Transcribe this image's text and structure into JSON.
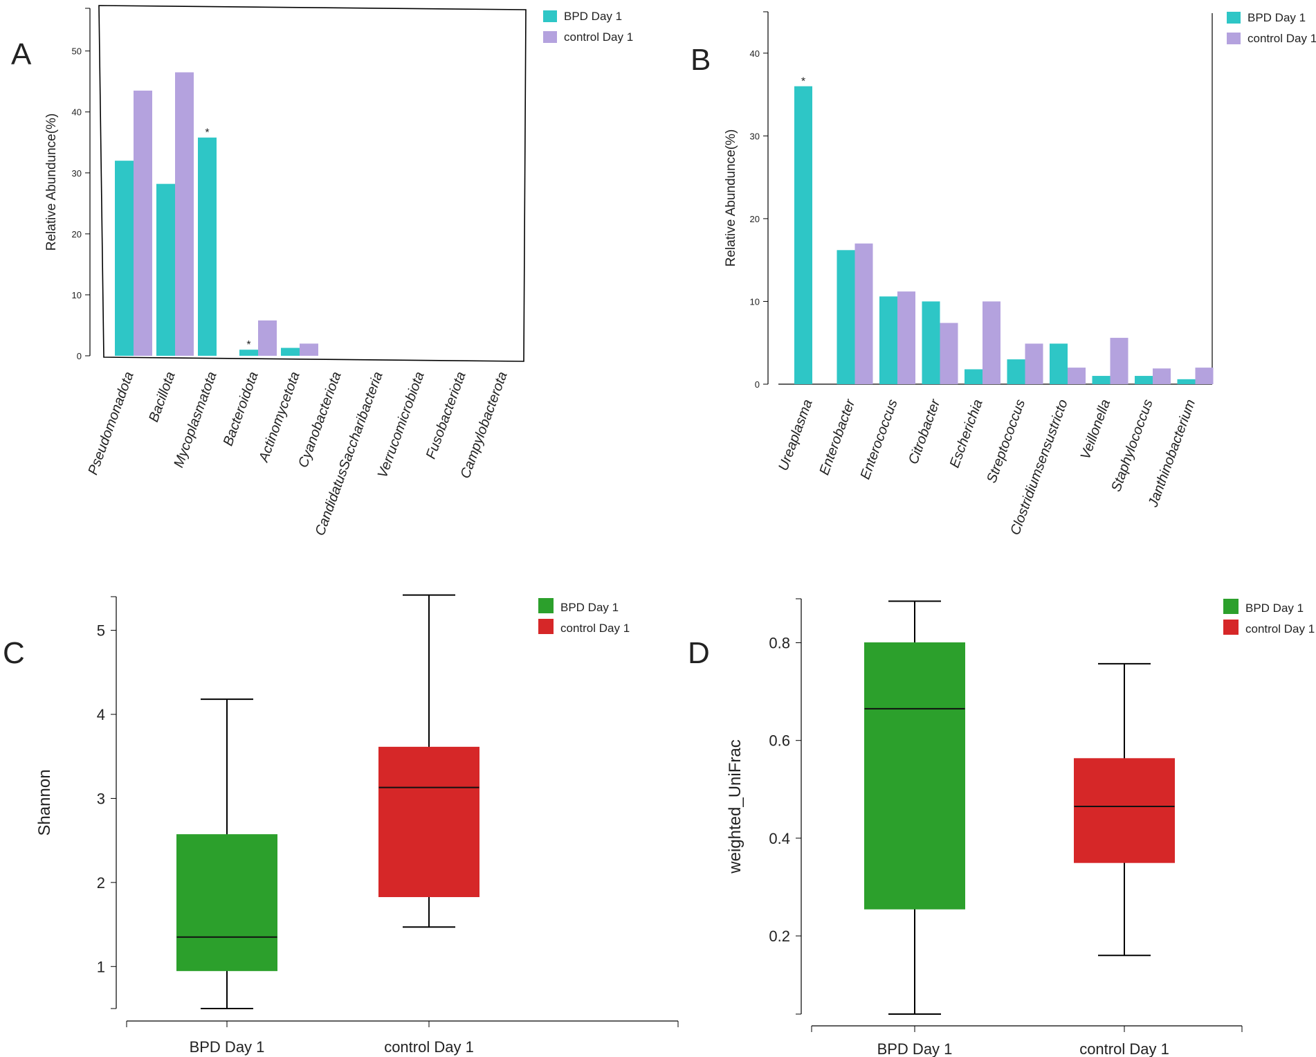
{
  "chart_data": [
    {
      "panel": "A",
      "type": "bar",
      "title": "",
      "xlabel": "",
      "ylabel": "Relative Abundunce(%)",
      "ylim": [
        0,
        57
      ],
      "yticks": [
        0,
        10,
        20,
        30,
        40,
        50
      ],
      "legend_position": "top-right",
      "categories": [
        "Pseudomonadota",
        "Bacillota",
        "Mycoplasmatota",
        "Bacteroidota",
        "Actinomycetota",
        "Cyanobacteriota",
        "CandidatusSaccharibacteria",
        "Verrucomicrobiota",
        "Fusobacteriota",
        "Campylobacterota"
      ],
      "series": [
        {
          "name": "BPD Day 1",
          "color": "#2ec6c6",
          "values": [
            32.0,
            28.2,
            35.8,
            1.0,
            1.3,
            0,
            0,
            0,
            0,
            0
          ]
        },
        {
          "name": "control Day 1",
          "color": "#b4a2de",
          "values": [
            43.5,
            46.5,
            0,
            5.8,
            2.0,
            0,
            0,
            0,
            0,
            0
          ]
        }
      ],
      "annotations": [
        {
          "category": "Mycoplasmatota",
          "series": "BPD Day 1",
          "text": "*"
        },
        {
          "category": "Bacteroidota",
          "series": "BPD Day 1",
          "text": "*"
        }
      ]
    },
    {
      "panel": "B",
      "type": "bar",
      "title": "",
      "xlabel": "",
      "ylabel": "Relative Abundunce(%)",
      "ylim": [
        0,
        45
      ],
      "yticks": [
        0,
        10,
        20,
        30,
        40
      ],
      "legend_position": "top-right",
      "categories": [
        "Ureaplasma",
        "Enterobacter",
        "Enterococcus",
        "Citrobacter",
        "Escherichia",
        "Streptococcus",
        "Clostridiumsensustricto",
        "Veillonella",
        "Staphylococcus",
        "Janthinobacterium"
      ],
      "series": [
        {
          "name": "BPD Day 1",
          "color": "#2ec6c6",
          "values": [
            36.0,
            16.2,
            10.6,
            10.0,
            1.8,
            3.0,
            4.9,
            1.0,
            1.0,
            0.6
          ]
        },
        {
          "name": "control Day 1",
          "color": "#b4a2de",
          "values": [
            0,
            17.0,
            11.2,
            7.4,
            10.0,
            4.9,
            2.0,
            5.6,
            1.9,
            2.0
          ]
        }
      ],
      "annotations": [
        {
          "category": "Ureaplasma",
          "series": "BPD Day 1",
          "text": "*"
        }
      ]
    },
    {
      "panel": "C",
      "type": "box",
      "title": "",
      "xlabel": "",
      "ylabel": "Shannon",
      "ylim": [
        0.5,
        5.4
      ],
      "yticks": [
        1,
        2,
        3,
        4,
        5
      ],
      "legend_position": "top-right",
      "groups": [
        {
          "name": "BPD Day 1",
          "color": "#2ca02c",
          "min": 0.5,
          "q1": 0.95,
          "median": 1.35,
          "q3": 2.57,
          "max": 4.18
        },
        {
          "name": "control Day 1",
          "color": "#d62728",
          "min": 1.47,
          "q1": 1.83,
          "median": 3.13,
          "q3": 3.61,
          "max": 5.42
        }
      ]
    },
    {
      "panel": "D",
      "type": "box",
      "title": "",
      "xlabel": "",
      "ylabel": "weighted_UniFrac",
      "ylim": [
        0.04,
        0.89
      ],
      "yticks": [
        0.2,
        0.4,
        0.6,
        0.8
      ],
      "legend_position": "top-right",
      "groups": [
        {
          "name": "BPD Day 1",
          "color": "#2ca02c",
          "min": 0.04,
          "q1": 0.255,
          "median": 0.665,
          "q3": 0.8,
          "max": 0.885
        },
        {
          "name": "control Day 1",
          "color": "#d62728",
          "min": 0.16,
          "q1": 0.35,
          "median": 0.465,
          "q3": 0.563,
          "max": 0.757
        }
      ]
    }
  ]
}
